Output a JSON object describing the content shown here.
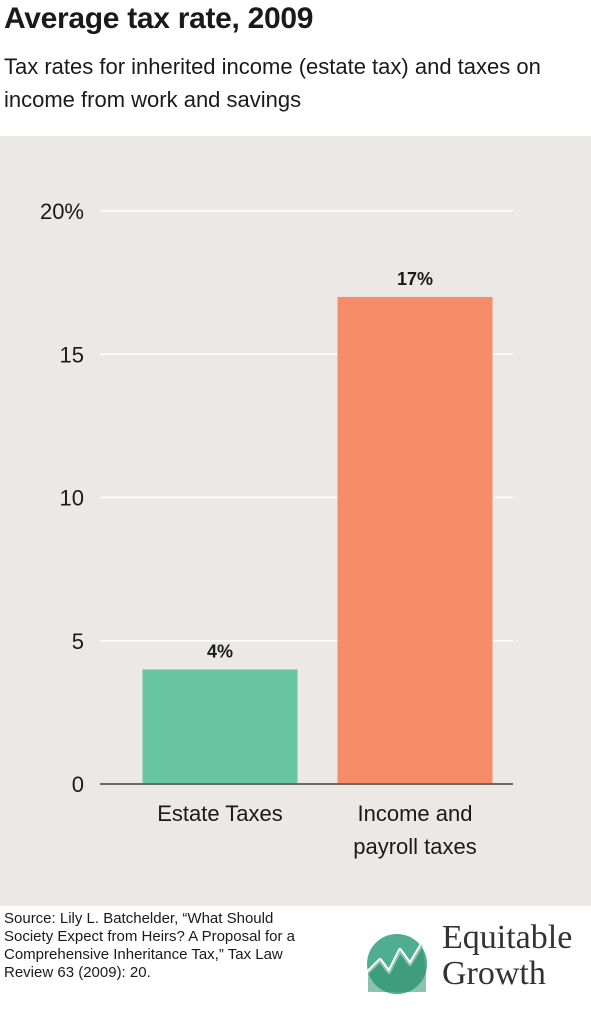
{
  "header": {
    "title": "Average tax rate, 2009",
    "subtitle": "Tax rates for inherited income (estate tax) and taxes on income from work and savings"
  },
  "footer": {
    "source": "Source: Lily L. Batchelder, “What Should Society Expect from Heirs? A Proposal for a Comprehensive Inheritance Tax,” Tax Law Review 63 (2009): 20.",
    "logo_line1": "Equitable",
    "logo_line2": "Growth"
  },
  "chart_data": {
    "type": "bar",
    "title": "Average tax rate, 2009",
    "categories": [
      "Estate Taxes",
      "Income and payroll taxes"
    ],
    "category_lines": [
      [
        "Estate Taxes"
      ],
      [
        "Income and",
        "payroll taxes"
      ]
    ],
    "values": [
      4,
      17
    ],
    "value_labels": [
      "4%",
      "17%"
    ],
    "colors": [
      "#69c4a4",
      "#f68c68"
    ],
    "ylim": [
      0,
      20
    ],
    "yticks": [
      0,
      5,
      10,
      15,
      20
    ],
    "ytick_labels": [
      "0",
      "5",
      "10",
      "15",
      "20%"
    ],
    "grid": true,
    "background": "#ece8e6"
  }
}
